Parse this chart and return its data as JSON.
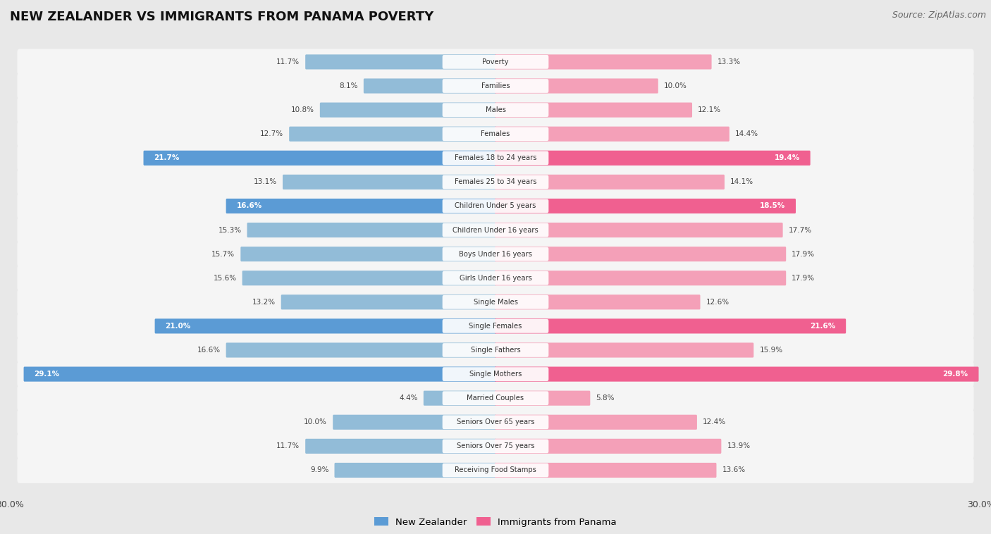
{
  "title": "NEW ZEALANDER VS IMMIGRANTS FROM PANAMA POVERTY",
  "source": "Source: ZipAtlas.com",
  "categories": [
    "Poverty",
    "Families",
    "Males",
    "Females",
    "Females 18 to 24 years",
    "Females 25 to 34 years",
    "Children Under 5 years",
    "Children Under 16 years",
    "Boys Under 16 years",
    "Girls Under 16 years",
    "Single Males",
    "Single Females",
    "Single Fathers",
    "Single Mothers",
    "Married Couples",
    "Seniors Over 65 years",
    "Seniors Over 75 years",
    "Receiving Food Stamps"
  ],
  "nz_values": [
    11.7,
    8.1,
    10.8,
    12.7,
    21.7,
    13.1,
    16.6,
    15.3,
    15.7,
    15.6,
    13.2,
    21.0,
    16.6,
    29.1,
    4.4,
    10.0,
    11.7,
    9.9
  ],
  "panama_values": [
    13.3,
    10.0,
    12.1,
    14.4,
    19.4,
    14.1,
    18.5,
    17.7,
    17.9,
    17.9,
    12.6,
    21.6,
    15.9,
    29.8,
    5.8,
    12.4,
    13.9,
    13.6
  ],
  "nz_color": "#92bcd8",
  "panama_color": "#f4a0b8",
  "nz_highlight_color": "#5b9bd5",
  "panama_highlight_color": "#f06090",
  "background_color": "#e8e8e8",
  "bar_bg_color": "#f5f5f5",
  "x_max": 30.0,
  "legend_nz": "New Zealander",
  "legend_panama": "Immigrants from Panama",
  "title_fontsize": 13,
  "source_fontsize": 9,
  "highlight_rows": [
    4,
    6,
    11,
    13
  ]
}
